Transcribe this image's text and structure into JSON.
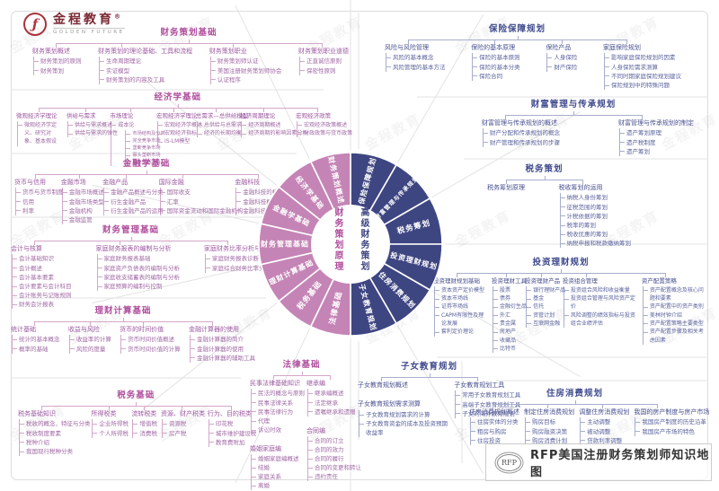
{
  "brand": {
    "name": "金程教育",
    "reg": "®",
    "sub": "GOLDEN FUTURE"
  },
  "watermark": {
    "text": "金程教育"
  },
  "footer": {
    "seal": "RFP",
    "title": "RFP美国注册财务策划师知识地图"
  },
  "wheel": {
    "left_center": "财务策划原理",
    "right_center": "高级财务策划",
    "colors": {
      "left": "#c584b6",
      "right": "#3e4682",
      "left_text": "#b04f9d",
      "right_text": "#3e4682",
      "divider": "#e3e3e3"
    },
    "left_segments": [
      "财务策划概述",
      "经济学基础",
      "金融学基础",
      "财务管理基础",
      "理财计算基础",
      "税务基础",
      "法律基础"
    ],
    "right_segments": [
      "保险保障规划",
      "财富管理与传承规划",
      "税务筹划",
      "投资理财规划",
      "住房消费规划",
      "子女教育规划"
    ]
  },
  "sections": [
    {
      "id": "s1",
      "side": "left",
      "title": "财务策划基础",
      "cols": [
        {
          "groups": [
            {
              "header": "财务策划概述",
              "items": [
                "财务策划的原则",
                "财务策划"
              ]
            }
          ]
        },
        {
          "groups": [
            {
              "header": "财务策划的理论基础、工具和流程",
              "items": [
                "生命周期理论",
                "实证模型",
                "财务策划的内容及工具"
              ]
            }
          ]
        },
        {
          "groups": [
            {
              "header": "财务策划职业",
              "items": [
                "财务策划师认证",
                "美国注册财务策划师协会",
                "认证程序"
              ]
            }
          ]
        },
        {
          "groups": [
            {
              "header": "财务策划职业道德",
              "items": [
                "正直诚信原则",
                "保密性原则"
              ]
            }
          ]
        }
      ]
    },
    {
      "id": "s2",
      "side": "left",
      "title": "经济学基础",
      "cols": [
        {
          "wmax": 50,
          "groups": [
            {
              "header": "微观经济学理论",
              "items": [
                "微观经济学定义、研究对象、基本假设"
              ]
            }
          ]
        },
        {
          "groups": [
            {
              "header": "供给与需求",
              "items": [
                "供给与需求概述",
                "供给与需求的弹性"
              ]
            }
          ]
        },
        {
          "groups": [
            {
              "header": "市场理论",
              "items": [
                {
                  "t": "成本论",
                  "children": [
                    "市场结构及分类",
                    "完全竞争市场",
                    "垄断竞争市场",
                    "寡头垄断市场",
                    "完全垄断市场"
                  ]
                }
              ]
            }
          ]
        },
        {
          "groups": [
            {
              "header": "宏观经济学理论",
              "items": [
                "宏观经济学概述",
                "宏观经济指标",
                "IS-LM模型"
              ]
            }
          ]
        },
        {
          "groups": [
            {
              "header": "总需求—总供给模型",
              "items": [
                "总供给与总需求",
                "经济的长期均衡"
              ]
            }
          ]
        },
        {
          "groups": [
            {
              "header": "经济周期理论",
              "items": [
                "经济周期概述",
                "经济周期的影响因素分析"
              ]
            }
          ]
        },
        {
          "groups": [
            {
              "header": "宏观经济政策",
              "items": [
                "宏观经济政策概述",
                "财政政策与货币政策"
              ]
            }
          ]
        }
      ]
    },
    {
      "id": "s3",
      "side": "left",
      "title": "金融学基础",
      "cols": [
        {
          "groups": [
            {
              "header": "货币与信用",
              "items": [
                "货币与货币制度",
                "信用",
                "利率"
              ]
            }
          ]
        },
        {
          "groups": [
            {
              "header": "金融市场",
              "items": [
                "金融市场概述",
                "金融市场类型",
                "金融机构",
                "金融监管"
              ]
            }
          ]
        },
        {
          "groups": [
            {
              "header": "金融产品",
              "items": [
                "金融产品概述与分类",
                "衍生金融产品",
                "衍生金融产品的运用"
              ]
            }
          ]
        },
        {
          "groups": [
            {
              "header": "国际金融",
              "items": [
                "国际收支",
                "汇率",
                "国际资金流动和国际金融机构"
              ]
            }
          ]
        },
        {
          "groups": [
            {
              "header": "金融科技",
              "items": [
                "金融科技的核心内容",
                "金融科技概述",
                "金融科技的监管"
              ]
            }
          ]
        }
      ]
    },
    {
      "id": "s4",
      "side": "left",
      "title": "财务管理基础",
      "cols": [
        {
          "groups": [
            {
              "header": "会计与核算",
              "items": [
                "会计基础知识",
                "会计概述",
                "会计基本要素",
                "会计要素与会计科目",
                "会计账务与记账规则",
                "财务会计报表"
              ]
            }
          ]
        },
        {
          "groups": [
            {
              "header": "家庭财务报表的编制与分析",
              "items": [
                "家庭财务报表基础",
                "家庭资产负债表的编制与分析",
                "家庭收支储蓄表的编制与分析",
                "家庭预算的编制与控制"
              ]
            }
          ]
        },
        {
          "groups": [
            {
              "header": "家庭财务比率分析与诊断",
              "items": [
                "家庭财务报表诊断",
                "家庭综合财务比率分析"
              ]
            }
          ]
        }
      ]
    },
    {
      "id": "s5",
      "side": "left",
      "title": "理财计算基础",
      "cols": [
        {
          "groups": [
            {
              "header": "统计基础",
              "items": [
                "统计的基本概念",
                "概率的基础"
              ]
            }
          ]
        },
        {
          "groups": [
            {
              "header": "收益与风险",
              "items": [
                "收益率的计算",
                "风险的度量"
              ]
            }
          ]
        },
        {
          "groups": [
            {
              "header": "货币的时间价值",
              "items": [
                "货币时间价值概述",
                "货币时间价值的计算"
              ]
            }
          ]
        },
        {
          "groups": [
            {
              "header": "金融计算器的使用",
              "items": [
                "金融计算器的简介",
                "金融计算器的使用",
                "金融计算器的辅助工具"
              ]
            }
          ]
        }
      ]
    },
    {
      "id": "s6",
      "side": "left",
      "title": "税务基础",
      "cols": [
        {
          "groups": [
            {
              "header": "税务基础知识",
              "items": [
                "税收的概念、特征与分类",
                "税收制度要素",
                "税种介绍",
                "我国现行税种分类"
              ]
            }
          ]
        },
        {
          "groups": [
            {
              "header": "所得税类",
              "items": [
                "企业所得税",
                "个人所得税"
              ]
            }
          ]
        },
        {
          "groups": [
            {
              "header": "流转税类",
              "items": [
                "增值税",
                "消费税"
              ]
            }
          ]
        },
        {
          "groups": [
            {
              "header": "资源、财产税类",
              "items": [
                "资源税",
                "房产税"
              ]
            }
          ]
        },
        {
          "groups": [
            {
              "header": "行为、目的税类",
              "items": [
                "印花税",
                "城市维护建设税",
                "教育费附加"
              ]
            }
          ]
        }
      ]
    },
    {
      "id": "s7",
      "side": "left",
      "title": "法律基础",
      "cols": [
        {
          "groups": [
            {
              "header": "民事法律基础知识",
              "items": [
                "民法的概念与原则",
                "民事法律关系",
                "民事法律行为",
                "代理",
                "诉讼时效"
              ]
            },
            {
              "header": "婚姻家庭编",
              "items": [
                "婚姻家庭编概述",
                "结婚",
                "家庭关系",
                "离婚"
              ]
            }
          ]
        },
        {
          "groups": [
            {
              "header": "继承编",
              "items": [
                "继承编概述",
                "法定继承",
                "遗嘱继承和遗赠"
              ]
            },
            {
              "header": "合同编",
              "items": [
                "合同的订立",
                "合同的效力",
                "合同的履行",
                "合同的变更和转让",
                "违约责任"
              ]
            }
          ]
        }
      ]
    },
    {
      "id": "s8",
      "side": "right",
      "title": "保险保障规划",
      "cols": [
        {
          "groups": [
            {
              "header": "风险与风险管理",
              "items": [
                "风险的基本概念",
                "风险管理的基本方法"
              ]
            }
          ]
        },
        {
          "groups": [
            {
              "header": "保险的基本原理",
              "items": [
                "保险的基本原则",
                "保险的基本分类",
                "保险合同"
              ]
            }
          ]
        },
        {
          "groups": [
            {
              "header": "保险产品",
              "items": [
                "人身保险",
                "财产保险"
              ]
            }
          ]
        },
        {
          "groups": [
            {
              "header": "家庭保险规划",
              "items": [
                "影响家庭保险规划的因素",
                "人身保险需求测算",
                "不同时期家庭保险规划建议",
                "保险规划中的特殊问题"
              ]
            }
          ]
        }
      ]
    },
    {
      "id": "s9",
      "side": "right",
      "title": "财富管理与传承规划",
      "cols": [
        {
          "groups": [
            {
              "header": "财富管理与传承规划的概述",
              "items": [
                "财产分配和传承规划的概念",
                "财产管理和传承规划的步骤"
              ]
            }
          ]
        },
        {
          "groups": [
            {
              "header": "财富管理与传承规划的制定",
              "items": [
                "遗产筹划原理",
                "遗产税制度",
                "遗产筹划"
              ]
            }
          ]
        }
      ]
    },
    {
      "id": "s10",
      "side": "right",
      "title": "税务策划",
      "cols": [
        {
          "groups": [
            {
              "header": "税务筹划原理",
              "items": []
            }
          ]
        },
        {
          "groups": [
            {
              "header": "税收筹划的运用",
              "items": [
                "纳税人身份筹划",
                "征税范围的筹划",
                "计税依据的筹划",
                "税率的筹划",
                "税收优惠的筹划",
                "纳税申报和税款缴纳筹划"
              ]
            }
          ]
        }
      ]
    },
    {
      "id": "s11",
      "side": "right",
      "title": "投资理财规划",
      "cols": [
        {
          "wmax": 74,
          "groups": [
            {
              "header": "投资理财规划基础",
              "items": [
                "资本资产定价模型",
                "资本市场线",
                "证券市场线",
                "CAPM有限性及理论发展",
                "套利定价理论"
              ]
            }
          ]
        },
        {
          "groups": [
            {
              "header": "投资理财工具",
              "items": [
                "股票",
                "债券",
                "金融衍生品",
                "外汇",
                "贵金属",
                "房地产",
                "收藏品",
                "比特币"
              ]
            }
          ]
        },
        {
          "groups": [
            {
              "header": "投资理财产品",
              "items": [
                "银行理财产品",
                "基金",
                "信托",
                "资管计划",
                "互联网金融"
              ]
            }
          ]
        },
        {
          "wmax": 82,
          "groups": [
            {
              "header": "投资组合管理",
              "items": [
                "投资组合风险和收益衡量",
                "投资组合管理与风险资产定价",
                "风险调整的绩效指标与投资组合业绩评估"
              ]
            }
          ]
        },
        {
          "wmax": 88,
          "groups": [
            {
              "header": "资产配置策略",
              "items": [
                "资产配置概念及核心问题和要素",
                "资产配置中的资产类别",
                "美林时钟介绍",
                "资产配置策略主要类型",
                "资产配置步骤及相关考虑因素"
              ]
            }
          ]
        }
      ]
    },
    {
      "id": "s12",
      "side": "right",
      "title": "子女教育规划",
      "cols": [
        {
          "wmax": 108,
          "groups": [
            {
              "header": "子女教育规划概述",
              "items": []
            },
            {
              "header": "子女教育规划需求测算",
              "items": [
                "子女教育规划需求的计算",
                "子女教育资金的成本及投资预期收益率"
              ]
            }
          ]
        },
        {
          "groups": [
            {
              "header": "子女教育规划工具",
              "items": [
                "常用子女教育规划工具",
                "高端子女教育规划工具",
                "子女的海外教育规划"
              ]
            }
          ]
        }
      ]
    },
    {
      "id": "s13",
      "side": "right",
      "title": "住房消费规划",
      "cols": [
        {
          "groups": [
            {
              "header": "住房消费规划概述",
              "items": [
                "住房实体的分类",
                "租房与购房",
                "住房投资"
              ]
            }
          ]
        },
        {
          "groups": [
            {
              "header": "制定住房消费规划",
              "items": [
                "购房目标",
                "购房融资决策",
                "购房消费计划"
              ]
            }
          ]
        },
        {
          "groups": [
            {
              "header": "调整住房消费规划",
              "items": [
                "主动调整",
                "被动调整",
                "贷款利率调整"
              ]
            }
          ]
        },
        {
          "groups": [
            {
              "header": "我国的房产制度与房产市场",
              "items": [
                "我国房产制度的历史沿革",
                "我国房产市场的特色"
              ]
            }
          ]
        }
      ]
    }
  ]
}
